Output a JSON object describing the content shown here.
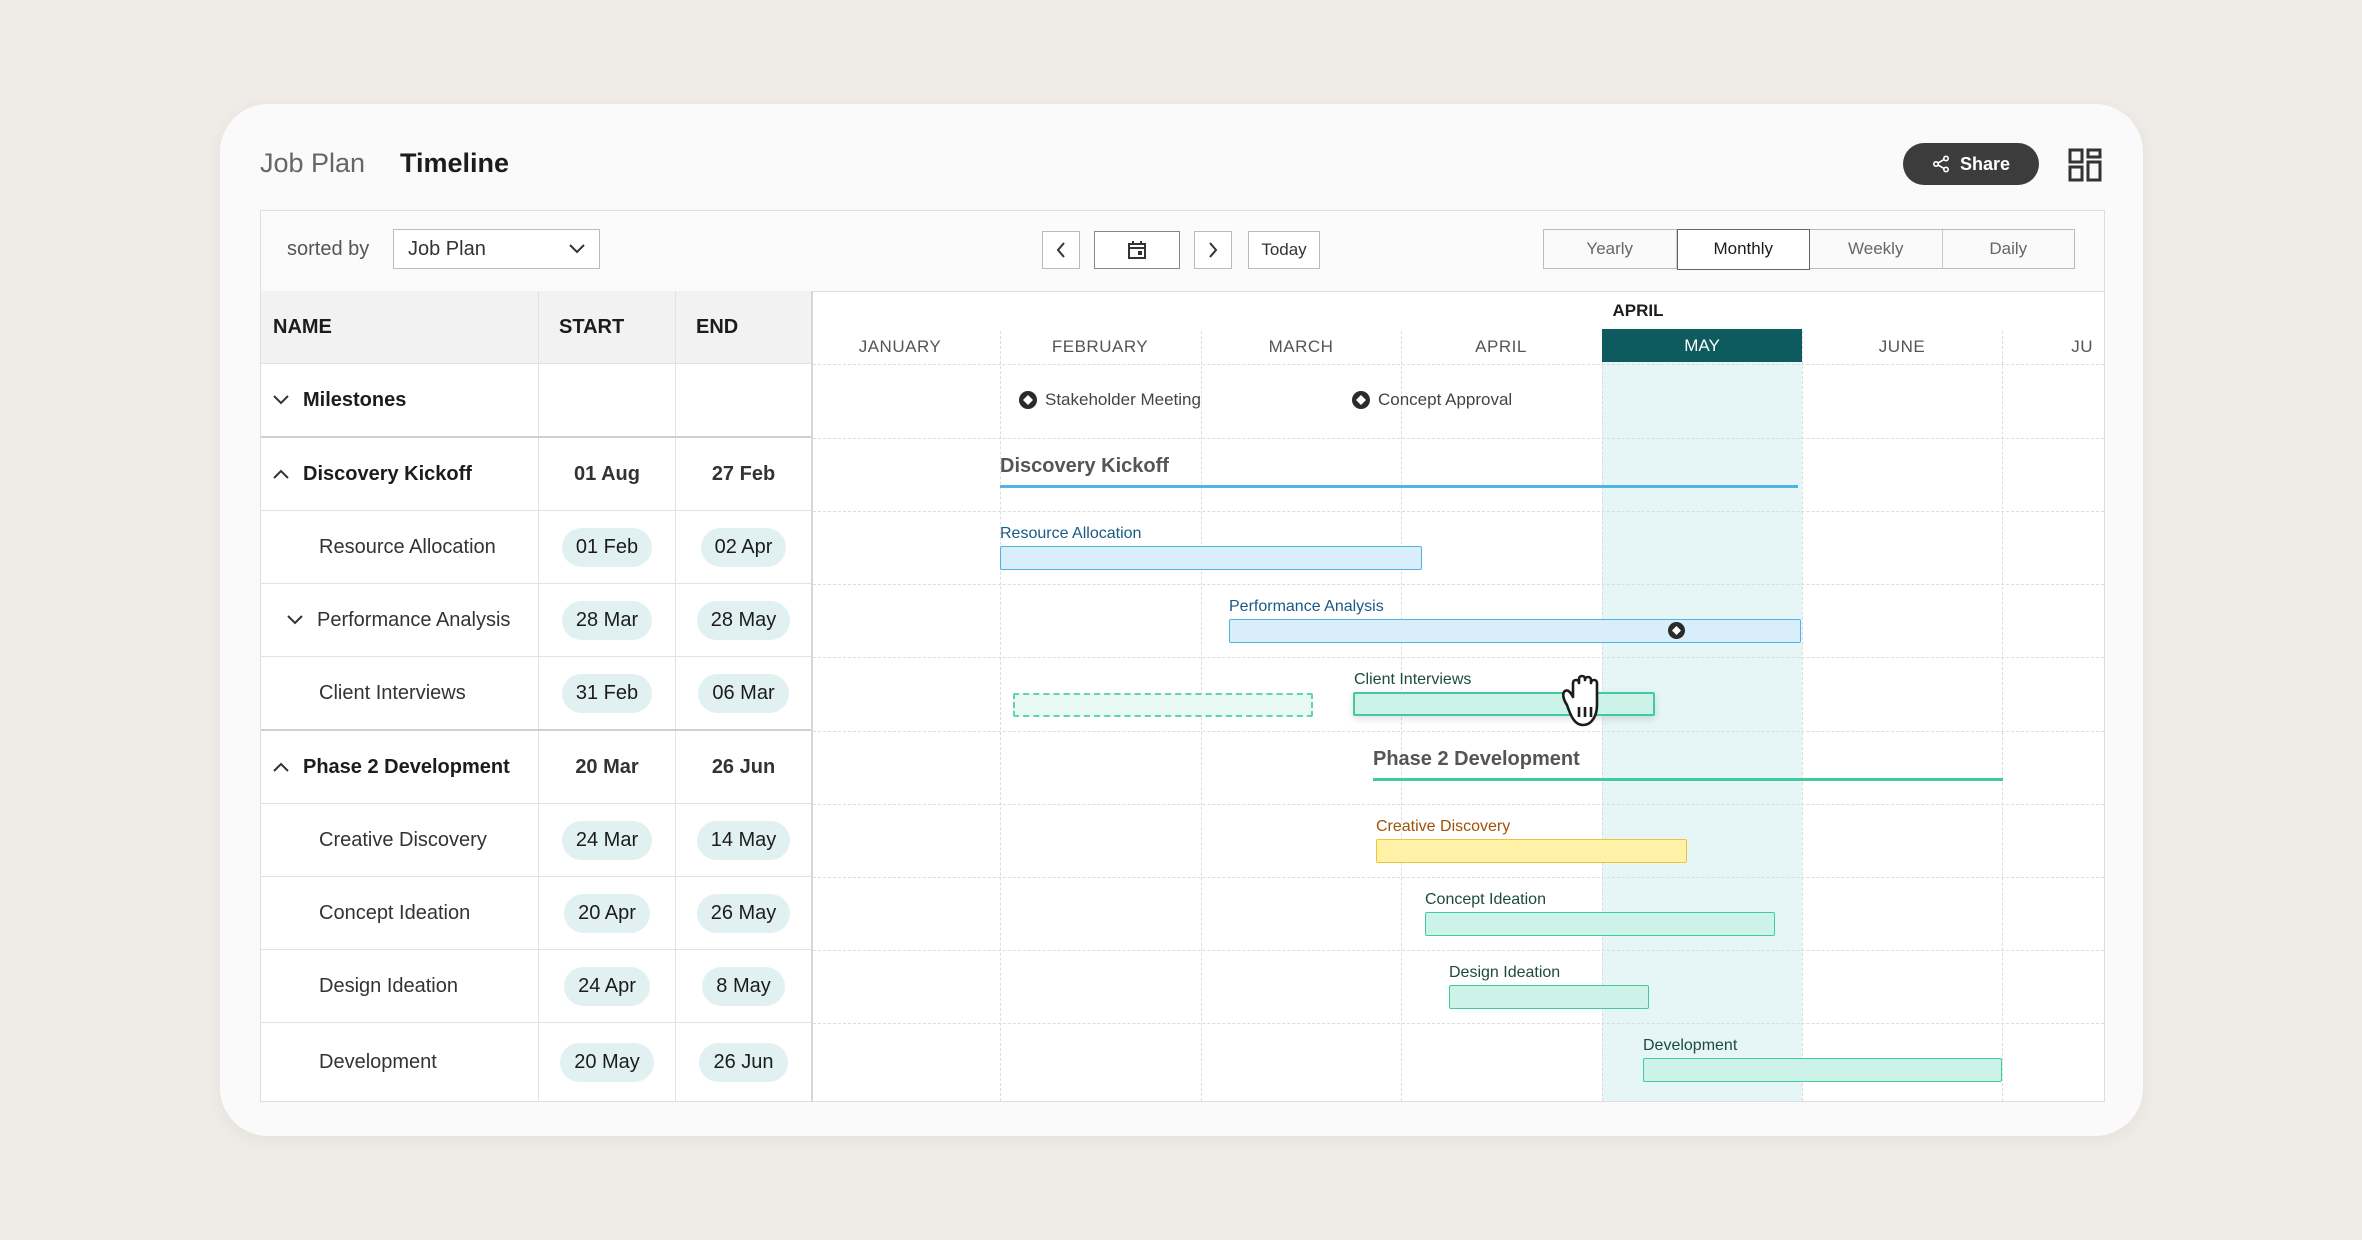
{
  "header": {
    "section": "Job Plan",
    "title": "Timeline",
    "share_label": "Share"
  },
  "toolbar": {
    "sorted_by_label": "sorted by",
    "sort_value": "Job Plan",
    "today_label": "Today",
    "views": [
      "Yearly",
      "Monthly",
      "Weekly",
      "Daily"
    ],
    "active_view": "Monthly"
  },
  "table": {
    "columns": {
      "name": "NAME",
      "start": "START",
      "end": "END"
    },
    "rows": [
      {
        "name": "Milestones",
        "start": "",
        "end": "",
        "kind": "group",
        "toggle": "down"
      },
      {
        "name": "Discovery Kickoff",
        "start": "01 Aug",
        "end": "27 Feb",
        "kind": "group",
        "toggle": "up"
      },
      {
        "name": "Resource Allocation",
        "start": "01 Feb",
        "end": "02 Apr",
        "kind": "task"
      },
      {
        "name": "Performance Analysis",
        "start": "28 Mar",
        "end": "28 May",
        "kind": "task",
        "toggle": "down"
      },
      {
        "name": "Client Interviews",
        "start": "31 Feb",
        "end": "06 Mar",
        "kind": "task"
      },
      {
        "name": "Phase 2 Development",
        "start": "20 Mar",
        "end": "26 Jun",
        "kind": "group",
        "toggle": "up"
      },
      {
        "name": "Creative Discovery",
        "start": "24 Mar",
        "end": "14 May",
        "kind": "task"
      },
      {
        "name": "Concept Ideation",
        "start": "20 Apr",
        "end": "26 May",
        "kind": "task"
      },
      {
        "name": "Design Ideation",
        "start": "24 Apr",
        "end": "8 May",
        "kind": "task"
      },
      {
        "name": "Development",
        "start": "20 May",
        "end": "26 Jun",
        "kind": "task"
      }
    ]
  },
  "timeline": {
    "months": [
      "JANUARY",
      "FEBRUARY",
      "MARCH",
      "APRIL",
      "MAY",
      "JUNE",
      "JU"
    ],
    "highlight_month": "MAY",
    "highlight_top_label": "APRIL",
    "milestones": [
      "Stakeholder Meeting",
      "Concept Approval"
    ],
    "groups": [
      "Discovery Kickoff",
      "Phase 2 Development"
    ],
    "bars": [
      "Resource Allocation",
      "Performance Analysis",
      "Client Interviews",
      "Creative Discovery",
      "Concept Ideation",
      "Design Ideation",
      "Development"
    ]
  },
  "colors": {
    "accent": "#0d5a5f",
    "blue_bar": "#d8eefa",
    "green_bar": "#cdf3e8",
    "yellow_bar": "#fff1a6"
  }
}
